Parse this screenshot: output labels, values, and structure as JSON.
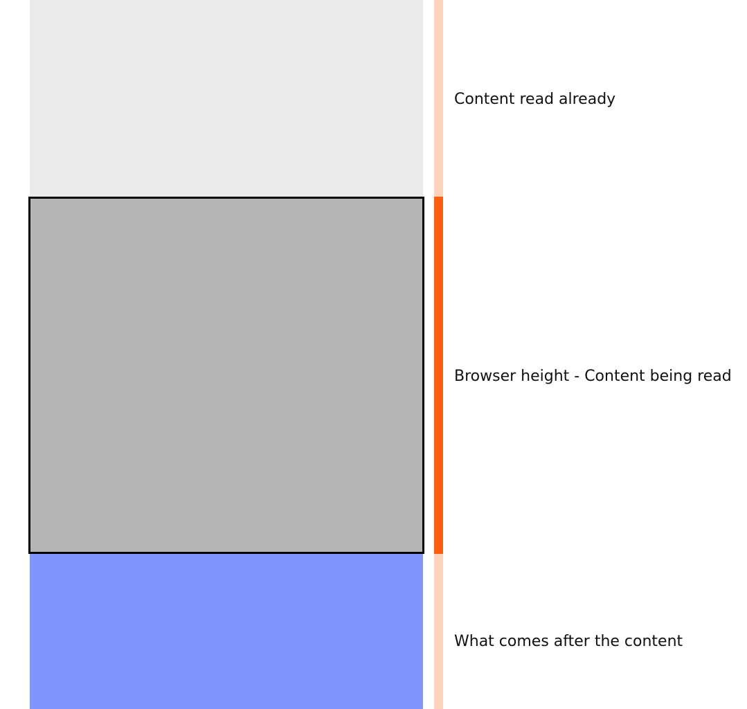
{
  "sections": {
    "read": {
      "label": "Content read already",
      "block_color": "#eaeaea",
      "bar_color": "#ffd2bc"
    },
    "viewport": {
      "label": "Browser height - Content being read",
      "block_color": "#b5b5b5",
      "bar_color": "#ff5f0f",
      "border_color": "#000000"
    },
    "after": {
      "label": "What comes after the content",
      "block_color": "#8295ff",
      "bar_color": "#ffd2bc"
    }
  }
}
